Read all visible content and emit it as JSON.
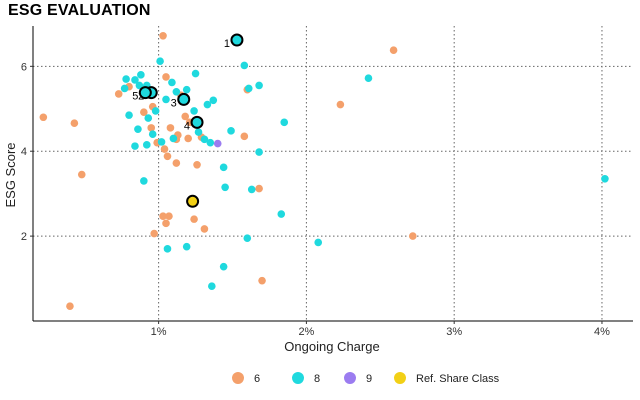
{
  "chart_data": {
    "type": "scatter",
    "title": "ESG EVALUATION",
    "xlabel": "Ongoing Charge",
    "ylabel": "ESG Score",
    "xlim": [
      0.0015,
      0.0421
    ],
    "ylim": [
      0.0,
      6.95
    ],
    "x_ticks": [
      {
        "value": 0.01,
        "label": "1%"
      },
      {
        "value": 0.02,
        "label": "2%"
      },
      {
        "value": 0.03,
        "label": "3%"
      },
      {
        "value": 0.04,
        "label": "4%"
      }
    ],
    "y_ticks": [
      {
        "value": 2,
        "label": "2"
      },
      {
        "value": 4,
        "label": "4"
      },
      {
        "value": 6,
        "label": "6"
      }
    ],
    "grid": true,
    "legend_position": "bottom",
    "legend": [
      {
        "name": "6",
        "color": "#F4A06B"
      },
      {
        "name": "8",
        "color": "#1FD9DE"
      },
      {
        "name": "9",
        "color": "#9B7CF0"
      },
      {
        "name": "Ref. Share Class",
        "color": "#F2D016"
      }
    ],
    "series": [
      {
        "name": "6",
        "color": "#F4A06B",
        "points": [
          [
            0.0103,
            6.72
          ],
          [
            0.0259,
            6.38
          ],
          [
            0.0105,
            5.75
          ],
          [
            0.008,
            5.52
          ],
          [
            0.0073,
            5.35
          ],
          [
            0.0096,
            5.05
          ],
          [
            0.009,
            4.92
          ],
          [
            0.016,
            5.45
          ],
          [
            0.0223,
            5.1
          ],
          [
            0.0115,
            5.32
          ],
          [
            0.0118,
            4.82
          ],
          [
            0.0108,
            4.55
          ],
          [
            0.0121,
            4.68
          ],
          [
            0.0113,
            4.38
          ],
          [
            0.0129,
            4.33
          ],
          [
            0.0158,
            4.35
          ],
          [
            0.0099,
            4.2
          ],
          [
            0.0104,
            4.05
          ],
          [
            0.012,
            4.3
          ],
          [
            0.0106,
            3.88
          ],
          [
            0.0112,
            3.72
          ],
          [
            0.0126,
            3.68
          ],
          [
            0.0103,
            2.47
          ],
          [
            0.0107,
            2.47
          ],
          [
            0.0105,
            2.3
          ],
          [
            0.0124,
            2.4
          ],
          [
            0.0131,
            2.17
          ],
          [
            0.0097,
            2.06
          ],
          [
            0.0272,
            2.0
          ],
          [
            0.0168,
            3.12
          ],
          [
            0.0048,
            3.45
          ],
          [
            0.004,
            0.35
          ],
          [
            0.0022,
            4.8
          ],
          [
            0.0043,
            4.66
          ],
          [
            0.0095,
            4.55
          ],
          [
            0.017,
            0.95
          ],
          [
            0.0112,
            4.28
          ]
        ]
      },
      {
        "name": "8",
        "color": "#1FD9DE",
        "points": [
          [
            0.0088,
            5.8
          ],
          [
            0.0087,
            5.55
          ],
          [
            0.0077,
            5.48
          ],
          [
            0.0084,
            5.68
          ],
          [
            0.0078,
            5.7
          ],
          [
            0.0092,
            5.55
          ],
          [
            0.0101,
            6.12
          ],
          [
            0.0109,
            5.62
          ],
          [
            0.0112,
            5.4
          ],
          [
            0.0158,
            6.02
          ],
          [
            0.0161,
            5.48
          ],
          [
            0.0168,
            5.55
          ],
          [
            0.0242,
            5.72
          ],
          [
            0.0125,
            5.83
          ],
          [
            0.0119,
            5.45
          ],
          [
            0.0105,
            5.22
          ],
          [
            0.0098,
            4.95
          ],
          [
            0.0093,
            4.78
          ],
          [
            0.0086,
            4.52
          ],
          [
            0.0124,
            4.95
          ],
          [
            0.0133,
            5.1
          ],
          [
            0.0137,
            5.2
          ],
          [
            0.0185,
            4.68
          ],
          [
            0.0127,
            4.45
          ],
          [
            0.0131,
            4.28
          ],
          [
            0.0149,
            4.48
          ],
          [
            0.011,
            4.3
          ],
          [
            0.0102,
            4.22
          ],
          [
            0.0092,
            4.15
          ],
          [
            0.0096,
            4.4
          ],
          [
            0.0144,
            3.62
          ],
          [
            0.0168,
            3.98
          ],
          [
            0.0084,
            4.12
          ],
          [
            0.009,
            3.3
          ],
          [
            0.0145,
            3.15
          ],
          [
            0.0163,
            3.1
          ],
          [
            0.0183,
            2.52
          ],
          [
            0.0208,
            1.85
          ],
          [
            0.016,
            1.95
          ],
          [
            0.0106,
            1.7
          ],
          [
            0.0119,
            1.75
          ],
          [
            0.0144,
            1.28
          ],
          [
            0.0136,
            0.82
          ],
          [
            0.0402,
            3.35
          ],
          [
            0.0135,
            4.2
          ],
          [
            0.008,
            4.85
          ]
        ]
      },
      {
        "name": "9",
        "color": "#9B7CF0",
        "points": [
          [
            0.014,
            4.18
          ]
        ]
      },
      {
        "name": "Ref. Share Class",
        "color": "#F2D016",
        "points": [
          [
            0.0123,
            2.82
          ]
        ]
      }
    ],
    "highlighted": [
      {
        "label": "1",
        "x": 0.0153,
        "y": 6.62,
        "color": "#1FD9DE"
      },
      {
        "label": "2",
        "x": 0.0095,
        "y": 5.38,
        "color": "#1FD9DE"
      },
      {
        "label": "3",
        "x": 0.0117,
        "y": 5.22,
        "color": "#1FD9DE"
      },
      {
        "label": "4",
        "x": 0.0126,
        "y": 4.68,
        "color": "#1FD9DE"
      },
      {
        "label": "5",
        "x": 0.0091,
        "y": 5.38,
        "color": "#1FD9DE"
      }
    ]
  }
}
